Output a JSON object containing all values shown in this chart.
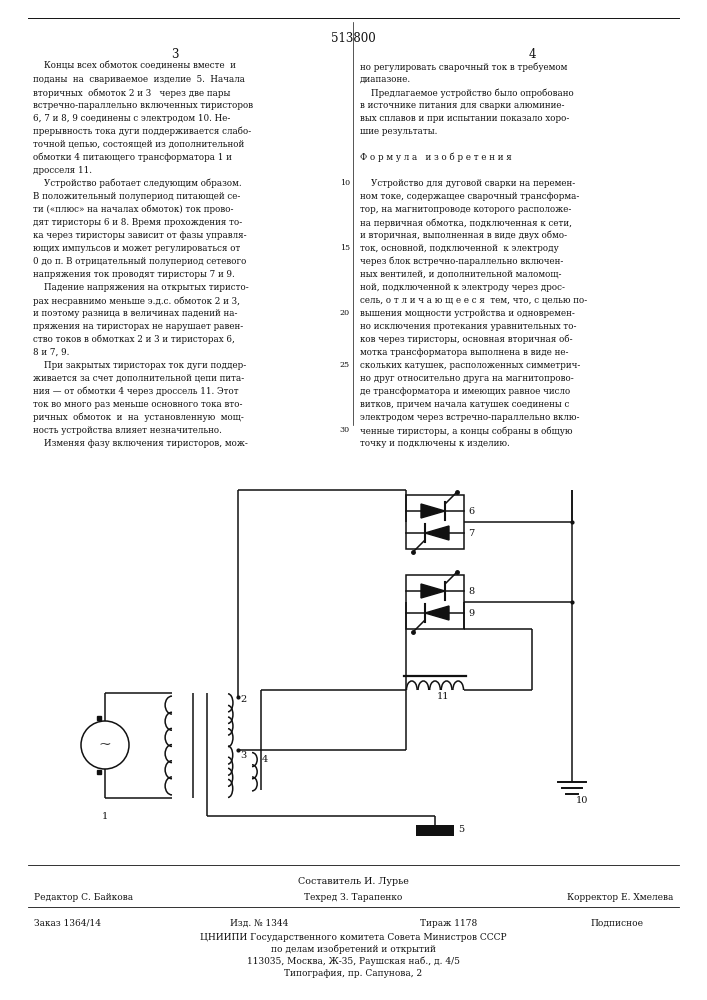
{
  "page_title": "513800",
  "col_left_num": "3",
  "col_right_num": "4",
  "bg_color": "#ffffff",
  "text_color": "#111111",
  "line_color": "#111111",
  "left_col_lines": [
    "    Концы всех обмоток соединены вместе  и",
    "поданы  на  свариваемое  изделие  5.  Начала",
    "вторичных  обмоток 2 и 3   через две пары",
    "встречно-параллельно включенных тиристоров",
    "6, 7 и 8, 9 соединены с электродом 10. Не-",
    "прерывность тока дуги поддерживается слабо-",
    "точной цепью, состоящей из дополнительной",
    "обмотки 4 питающего трансформатора 1 и",
    "дросселя 11.",
    "    Устройство работает следующим образом.",
    "В положительный полупериод питающей се-",
    "ти («плюс» на началах обмоток) ток прово-",
    "дят тиристоры 6 и 8. Время прохождения то-",
    "ка через тиристоры зависит от фазы управля-",
    "ющих импульсов и может регулироваться от",
    "0 до π. В отрицательный полупериод сетевого",
    "напряжения ток проводят тиристоры 7 и 9.",
    "    Падение напряжения на открытых тиристо-",
    "рах несравнимо меньше э.д.с. обмоток 2 и 3,",
    "и поэтому разница в величинах падений на-",
    "пряжения на тиристорах не нарушает равен-",
    "ство токов в обмотках 2 и 3 и тиристорах 6,",
    "8 и 7, 9.",
    "    При закрытых тиристорах ток дуги поддер-",
    "живается за счет дополнительной цепи пита-",
    "ния — от обмотки 4 через дроссель 11. Этот",
    "ток во много раз меньше основного тока вто-",
    "ричных  обмоток  и  на  установленную  мощ-",
    "ность устройства влияет незначительно.",
    "    Изменяя фазу включения тиристоров, мож-"
  ],
  "right_col_lines": [
    "но регулировать сварочный ток в требуемом",
    "диапазоне.",
    "    Предлагаемое устройство было опробовано",
    "в источнике питания для сварки алюминие-",
    "вых сплавов и при испытании показало хоро-",
    "шие результаты.",
    "",
    "Ф о р м у л а   и з о б р е т е н и я",
    "",
    "    Устройство для дуговой сварки на перемен-",
    "ном токе, содержащее сварочный трансформа-",
    "тор, на магнитопроводе которого расположе-",
    "на первичная обмотка, подключенная к сети,",
    "и вторичная, выполненная в виде двух обмо-",
    "ток, основной, подключенной  к электроду",
    "через блок встречно-параллельно включен-",
    "ных вентилей, и дополнительной маломощ-",
    "ной, подключенной к электроду через дрос-",
    "сель, о т л и ч а ю щ е е с я  тем, что, с целью по-",
    "вышения мощности устройства и одновремен-",
    "но исключения протекания уравнительных то-",
    "ков через тиристоры, основная вторичная об-",
    "мотка трансформатора выполнена в виде не-",
    "скольких катушек, расположенных симметрич-",
    "но друг относительно друга на магнитопрово-",
    "де трансформатора и имеющих равное число",
    "витков, причем начала катушек соединены с",
    "электродом через встречно-параллельно вклю-",
    "ченные тиристоры, а концы собраны в общую",
    "точку и подключены к изделию."
  ],
  "line_numbers": [
    [
      10,
      9
    ],
    [
      15,
      14
    ],
    [
      20,
      19
    ],
    [
      25,
      23
    ],
    [
      30,
      28
    ]
  ],
  "footer_composer": "Составитель И. Лурье",
  "footer_editor": "Редактор С. Байкова",
  "footer_tech": "Техред З. Тарапенко",
  "footer_corrector": "Корректор Е. Хмелева",
  "footer_order": "Заказ 1364/14",
  "footer_izd": "Изд. № 1344",
  "footer_tirazh": "Тираж 1178",
  "footer_podp": "Подписное",
  "footer_cniipi": "ЦНИИПИ Государственного комитета Совета Министров СССР",
  "footer_addr1": "по делам изобретений и открытий",
  "footer_addr2": "113035, Москва, Ж-35, Раушская наб., д. 4/5",
  "footer_tip": "Типография, пр. Сапунова, 2"
}
